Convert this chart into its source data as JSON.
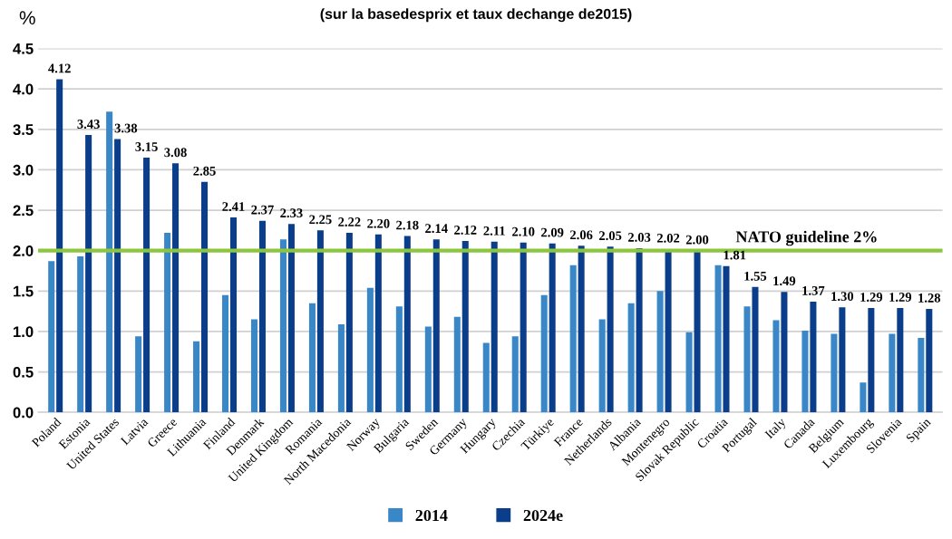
{
  "chart_data": {
    "type": "bar",
    "title": "(sur la basedesprix et taux dechange de2015)",
    "ylabel": "%",
    "categories": [
      "Poland",
      "Estonia",
      "United States",
      "Latvia",
      "Greece",
      "Lithuania",
      "Finland",
      "Denmark",
      "United Kingdom",
      "Romania",
      "North Macedonia",
      "Norway",
      "Bulgaria",
      "Sweden",
      "Germany",
      "Hungary",
      "Czechia",
      "Türkiye",
      "France",
      "Netherlands",
      "Albania",
      "Montenegro",
      "Slovak Republic",
      "Croatia",
      "Portugal",
      "Italy",
      "Canada",
      "Belgium",
      "Luxembourg",
      "Slovenia",
      "Spain"
    ],
    "series": [
      {
        "name": "2014",
        "color": "#3a87c8",
        "values": [
          1.87,
          1.93,
          3.72,
          0.94,
          2.22,
          0.88,
          1.45,
          1.15,
          2.14,
          1.35,
          1.09,
          1.54,
          1.31,
          1.06,
          1.18,
          0.86,
          0.94,
          1.45,
          1.82,
          1.15,
          1.35,
          1.5,
          0.99,
          1.82,
          1.31,
          1.14,
          1.01,
          0.97,
          0.37,
          0.97,
          0.92
        ]
      },
      {
        "name": "2024e",
        "color": "#0a3d8a",
        "values": [
          4.12,
          3.43,
          3.38,
          3.15,
          3.08,
          2.85,
          2.41,
          2.37,
          2.33,
          2.25,
          2.22,
          2.2,
          2.18,
          2.14,
          2.12,
          2.11,
          2.1,
          2.09,
          2.06,
          2.05,
          2.03,
          2.02,
          2.0,
          1.81,
          1.55,
          1.49,
          1.37,
          1.3,
          1.29,
          1.29,
          1.28
        ],
        "value_labels": [
          "4.12",
          "3.43",
          "3.38",
          "3.15",
          "3.08",
          "2.85",
          "2.41",
          "2.37",
          "2.33",
          "2.25",
          "2.22",
          "2.20",
          "2.18",
          "2.14",
          "2.12",
          "2.11",
          "2.10",
          "2.09",
          "2.06",
          "2.05",
          "2.03",
          "2.02",
          "2.00",
          "1.81",
          "1.55",
          "1.49",
          "1.37",
          "1.30",
          "1.29",
          "1.29",
          "1.28"
        ]
      }
    ],
    "ylim": [
      0,
      4.5
    ],
    "yticks": [
      {
        "value": 0,
        "label": "0.0"
      },
      {
        "value": 0.5,
        "label": "0.5"
      },
      {
        "value": 1,
        "label": "1.0"
      },
      {
        "value": 1.5,
        "label": "1.5"
      },
      {
        "value": 2,
        "label": "2.0"
      },
      {
        "value": 2.5,
        "label": "2.5"
      },
      {
        "value": 3,
        "label": "3.0"
      },
      {
        "value": 3.5,
        "label": "3.5"
      },
      {
        "value": 4,
        "label": "4.0"
      },
      {
        "value": 4.5,
        "label": "4.5"
      }
    ],
    "ref_lines": [
      {
        "axis": "y",
        "value": 2,
        "label": "NATO guideline 2%",
        "color": "#8cc63f"
      }
    ],
    "grid": "y",
    "legend": "bottom"
  }
}
